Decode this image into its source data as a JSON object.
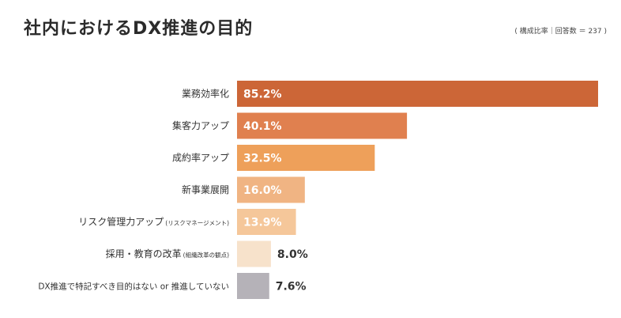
{
  "chart_data": {
    "type": "bar",
    "orientation": "horizontal",
    "title": "社内におけるDX推進の目的",
    "note": "( 構成比率｜回答数 ＝ 237 )",
    "categories": [
      {
        "label": "業務効率化",
        "sub": ""
      },
      {
        "label": "集客力アップ",
        "sub": ""
      },
      {
        "label": "成約率アップ",
        "sub": ""
      },
      {
        "label": "新事業展開",
        "sub": ""
      },
      {
        "label": "リスク管理力アップ",
        "sub": "(リスクマネージメント)"
      },
      {
        "label": "採用・教育の改革",
        "sub": "(組織改革の観点)"
      },
      {
        "label": "DX推進で特記すべき目的はない or 推進していない",
        "sub": ""
      }
    ],
    "values": [
      85.2,
      40.1,
      32.5,
      16.0,
      13.9,
      8.0,
      7.6
    ],
    "value_labels": [
      "85.2%",
      "40.1%",
      "32.5%",
      "16.0%",
      "13.9%",
      "8.0%",
      "7.6%"
    ],
    "colors": [
      "#cc6637",
      "#e0804f",
      "#eea05a",
      "#f0b483",
      "#f5c79a",
      "#f7e2cb",
      "#b5b2b8"
    ],
    "xlim": [
      0,
      85.2
    ],
    "grid": false,
    "legend": "none"
  }
}
